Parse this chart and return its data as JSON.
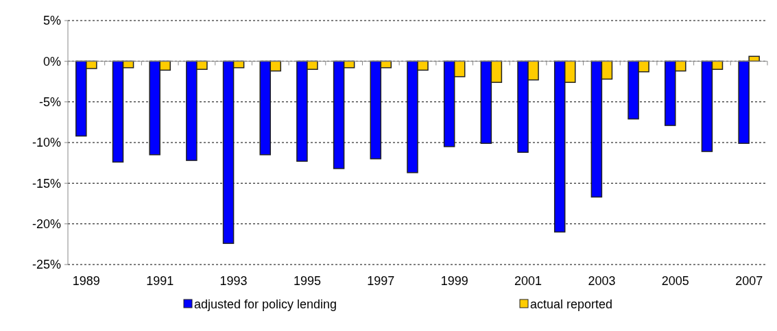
{
  "chart_data": {
    "type": "bar",
    "categories": [
      "1989",
      null,
      "1991",
      null,
      "1993",
      null,
      "1995",
      null,
      "1997",
      null,
      "1999",
      null,
      "2001",
      null,
      "2003",
      null,
      "2005",
      null,
      "2007"
    ],
    "series": [
      {
        "name": "adjusted for policy lending",
        "color": "#0000ff",
        "values": [
          -9.2,
          -12.4,
          -11.5,
          -12.2,
          -22.4,
          -11.5,
          -12.3,
          -13.2,
          -12.0,
          -13.7,
          -10.5,
          -10.1,
          -11.2,
          -21.0,
          -16.7,
          -7.1,
          -7.9,
          -11.1,
          -10.1
        ]
      },
      {
        "name": "actual reported",
        "color": "#ffcc00",
        "values": [
          -0.9,
          -0.8,
          -1.1,
          -1.0,
          -0.8,
          -1.2,
          -1.0,
          -0.8,
          -0.8,
          -1.1,
          -1.9,
          -2.6,
          -2.3,
          -2.6,
          -2.2,
          -1.3,
          -1.2,
          -1.0,
          0.6
        ]
      }
    ],
    "ylim": [
      -25,
      5
    ],
    "yticks": [
      {
        "value": -25,
        "label": "-25%"
      },
      {
        "value": -20,
        "label": "-20%"
      },
      {
        "value": -15,
        "label": "-15%"
      },
      {
        "value": -10,
        "label": "-10%"
      },
      {
        "value": -5,
        "label": "-5%"
      },
      {
        "value": 0,
        "label": "0%"
      },
      {
        "value": 5,
        "label": "5%"
      }
    ],
    "grid": "y",
    "legend": "bottom"
  }
}
